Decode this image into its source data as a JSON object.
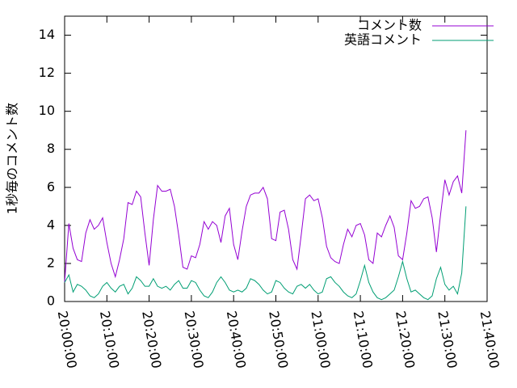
{
  "chart_data": {
    "type": "line",
    "y_label": "1秒毎のコメント数",
    "x": [
      "20:00:00",
      "20:01:00",
      "20:02:00",
      "20:03:00",
      "20:04:00",
      "20:05:00",
      "20:06:00",
      "20:07:00",
      "20:08:00",
      "20:09:00",
      "20:10:00",
      "20:11:00",
      "20:12:00",
      "20:13:00",
      "20:14:00",
      "20:15:00",
      "20:16:00",
      "20:17:00",
      "20:18:00",
      "20:19:00",
      "20:20:00",
      "20:21:00",
      "20:22:00",
      "20:23:00",
      "20:24:00",
      "20:25:00",
      "20:26:00",
      "20:27:00",
      "20:28:00",
      "20:29:00",
      "20:30:00",
      "20:31:00",
      "20:32:00",
      "20:33:00",
      "20:34:00",
      "20:35:00",
      "20:36:00",
      "20:37:00",
      "20:38:00",
      "20:39:00",
      "20:40:00",
      "20:41:00",
      "20:42:00",
      "20:43:00",
      "20:44:00",
      "20:45:00",
      "20:46:00",
      "20:47:00",
      "20:48:00",
      "20:49:00",
      "20:50:00",
      "20:51:00",
      "20:52:00",
      "20:53:00",
      "20:54:00",
      "20:55:00",
      "20:56:00",
      "20:57:00",
      "20:58:00",
      "20:59:00",
      "21:00:00",
      "21:01:00",
      "21:02:00",
      "21:03:00",
      "21:04:00",
      "21:05:00",
      "21:06:00",
      "21:07:00",
      "21:08:00",
      "21:09:00",
      "21:10:00",
      "21:11:00",
      "21:12:00",
      "21:13:00",
      "21:14:00",
      "21:15:00",
      "21:16:00",
      "21:17:00",
      "21:18:00",
      "21:19:00",
      "21:20:00",
      "21:21:00",
      "21:22:00",
      "21:23:00",
      "21:24:00",
      "21:25:00",
      "21:26:00",
      "21:27:00",
      "21:28:00",
      "21:29:00",
      "21:30:00",
      "21:31:00",
      "21:32:00",
      "21:33:00",
      "21:34:00",
      "21:35:00"
    ],
    "series": [
      {
        "name": "コメント数",
        "color": "#9400d3",
        "values": [
          1.0,
          4.1,
          2.8,
          2.2,
          2.1,
          3.6,
          4.3,
          3.8,
          4.0,
          4.4,
          3.1,
          2.0,
          1.3,
          2.2,
          3.3,
          5.2,
          5.1,
          5.8,
          5.5,
          3.6,
          1.9,
          4.3,
          6.1,
          5.8,
          5.8,
          5.9,
          5.0,
          3.5,
          1.8,
          1.7,
          2.4,
          2.3,
          3.0,
          4.2,
          3.8,
          4.2,
          4.0,
          3.1,
          4.5,
          4.9,
          3.0,
          2.2,
          3.7,
          5.0,
          5.6,
          5.7,
          5.7,
          6.0,
          5.4,
          3.3,
          3.2,
          4.7,
          4.8,
          3.8,
          2.2,
          1.7,
          3.5,
          5.4,
          5.6,
          5.3,
          5.4,
          4.4,
          2.9,
          2.3,
          2.1,
          2.0,
          3.0,
          3.8,
          3.4,
          4.0,
          4.1,
          3.5,
          2.2,
          2.0,
          3.6,
          3.4,
          4.0,
          4.5,
          3.9,
          2.4,
          2.2,
          3.6,
          5.3,
          4.9,
          5.0,
          5.4,
          5.5,
          4.4,
          2.6,
          4.6,
          6.4,
          5.6,
          6.3,
          6.6,
          5.7,
          9.0
        ]
      },
      {
        "name": "英語コメント",
        "color": "#009e73",
        "values": [
          1.0,
          1.4,
          0.5,
          0.9,
          0.8,
          0.6,
          0.3,
          0.2,
          0.4,
          0.8,
          1.0,
          0.7,
          0.5,
          0.8,
          0.9,
          0.4,
          0.7,
          1.3,
          1.1,
          0.8,
          0.8,
          1.2,
          0.8,
          0.7,
          0.8,
          0.6,
          0.9,
          1.1,
          0.7,
          0.7,
          1.1,
          1.0,
          0.6,
          0.3,
          0.2,
          0.5,
          1.0,
          1.3,
          1.0,
          0.6,
          0.5,
          0.6,
          0.5,
          0.7,
          1.2,
          1.1,
          0.9,
          0.6,
          0.4,
          0.5,
          1.1,
          1.0,
          0.7,
          0.5,
          0.4,
          0.8,
          0.9,
          0.7,
          0.9,
          0.6,
          0.4,
          0.5,
          1.2,
          1.3,
          1.0,
          0.8,
          0.5,
          0.3,
          0.2,
          0.4,
          1.1,
          1.9,
          1.0,
          0.5,
          0.2,
          0.1,
          0.2,
          0.4,
          0.6,
          1.3,
          2.1,
          1.2,
          0.5,
          0.6,
          0.4,
          0.2,
          0.1,
          0.3,
          1.2,
          1.8,
          0.9,
          0.6,
          0.8,
          0.4,
          1.5,
          5.0
        ]
      }
    ],
    "xlim": [
      "20:00:00",
      "21:40:00"
    ],
    "xticks": [
      "20:00:00",
      "20:10:00",
      "20:20:00",
      "20:30:00",
      "20:40:00",
      "20:50:00",
      "21:00:00",
      "21:10:00",
      "21:20:00",
      "21:30:00",
      "21:40:00"
    ],
    "ylim": [
      0,
      15
    ],
    "yticks": [
      0,
      2,
      4,
      6,
      8,
      10,
      12,
      14
    ],
    "legend": "upper right"
  }
}
